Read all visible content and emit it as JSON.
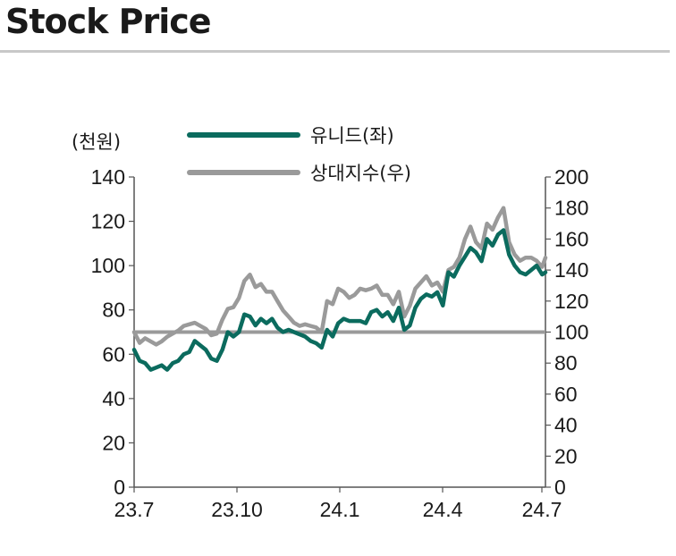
{
  "page": {
    "title": "Stock Price"
  },
  "chart_data": {
    "type": "line",
    "unit_left": "(천원)",
    "x_ticks": [
      "23.7",
      "23.10",
      "24.1",
      "24.4",
      "24.7"
    ],
    "y_left": {
      "min": 0,
      "max": 140,
      "ticks": [
        "0",
        "20",
        "40",
        "60",
        "80",
        "100",
        "120",
        "140"
      ]
    },
    "y_right": {
      "min": 0,
      "max": 200,
      "ticks": [
        "0",
        "20",
        "40",
        "60",
        "80",
        "100",
        "120",
        "140",
        "160",
        "180",
        "200"
      ]
    },
    "reference_line_right": 100,
    "x_range": [
      "2023-07-01",
      "2024-07-08"
    ],
    "series": [
      {
        "name": "유니드(좌)",
        "axis": "left",
        "color": "#0b6b5e",
        "x": [
          "2023-07-01",
          "2023-07-06",
          "2023-07-11",
          "2023-07-16",
          "2023-07-21",
          "2023-07-26",
          "2023-07-31",
          "2023-08-05",
          "2023-08-10",
          "2023-08-15",
          "2023-08-20",
          "2023-08-25",
          "2023-08-30",
          "2023-09-04",
          "2023-09-09",
          "2023-09-14",
          "2023-09-19",
          "2023-09-24",
          "2023-09-29",
          "2023-10-04",
          "2023-10-09",
          "2023-10-14",
          "2023-10-19",
          "2023-10-24",
          "2023-10-29",
          "2023-11-03",
          "2023-11-08",
          "2023-11-13",
          "2023-11-18",
          "2023-11-23",
          "2023-11-28",
          "2023-12-03",
          "2023-12-08",
          "2023-12-13",
          "2023-12-18",
          "2023-12-23",
          "2023-12-28",
          "2024-01-02",
          "2024-01-07",
          "2024-01-12",
          "2024-01-17",
          "2024-01-22",
          "2024-01-27",
          "2024-02-01",
          "2024-02-06",
          "2024-02-11",
          "2024-02-16",
          "2024-02-21",
          "2024-02-26",
          "2024-03-02",
          "2024-03-07",
          "2024-03-12",
          "2024-03-17",
          "2024-03-22",
          "2024-03-27",
          "2024-04-01",
          "2024-04-06",
          "2024-04-11",
          "2024-04-16",
          "2024-04-21",
          "2024-04-26",
          "2024-05-01",
          "2024-05-06",
          "2024-05-11",
          "2024-05-16",
          "2024-05-21",
          "2024-05-26",
          "2024-05-31",
          "2024-06-05",
          "2024-06-10",
          "2024-06-15",
          "2024-06-20",
          "2024-06-25",
          "2024-06-30",
          "2024-07-05",
          "2024-07-08"
        ],
        "values": [
          62,
          57,
          56,
          53,
          54,
          55,
          53,
          56,
          57,
          60,
          61,
          66,
          64,
          62,
          58,
          57,
          62,
          70,
          68,
          70,
          78,
          77,
          73,
          76,
          74,
          76,
          72,
          70,
          71,
          70,
          69,
          68,
          66,
          65,
          63,
          71,
          68,
          74,
          76,
          75,
          75,
          75,
          74,
          79,
          80,
          77,
          79,
          75,
          81,
          71,
          73,
          81,
          85,
          87,
          86,
          88,
          82,
          97,
          95,
          100,
          104,
          108,
          106,
          102,
          112,
          109,
          114,
          116,
          105,
          100,
          97,
          96,
          98,
          100,
          96,
          97
        ]
      },
      {
        "name": "상대지수(우)",
        "axis": "right",
        "color": "#9a9a9a",
        "x": [
          "2023-07-01",
          "2023-07-06",
          "2023-07-11",
          "2023-07-16",
          "2023-07-21",
          "2023-07-26",
          "2023-07-31",
          "2023-08-05",
          "2023-08-10",
          "2023-08-15",
          "2023-08-20",
          "2023-08-25",
          "2023-08-30",
          "2023-09-04",
          "2023-09-09",
          "2023-09-14",
          "2023-09-19",
          "2023-09-24",
          "2023-09-29",
          "2023-10-04",
          "2023-10-09",
          "2023-10-14",
          "2023-10-19",
          "2023-10-24",
          "2023-10-29",
          "2023-11-03",
          "2023-11-08",
          "2023-11-13",
          "2023-11-18",
          "2023-11-23",
          "2023-11-28",
          "2023-12-03",
          "2023-12-08",
          "2023-12-13",
          "2023-12-18",
          "2023-12-23",
          "2023-12-28",
          "2024-01-02",
          "2024-01-07",
          "2024-01-12",
          "2024-01-17",
          "2024-01-22",
          "2024-01-27",
          "2024-02-01",
          "2024-02-06",
          "2024-02-11",
          "2024-02-16",
          "2024-02-21",
          "2024-02-26",
          "2024-03-02",
          "2024-03-07",
          "2024-03-12",
          "2024-03-17",
          "2024-03-22",
          "2024-03-27",
          "2024-04-01",
          "2024-04-06",
          "2024-04-11",
          "2024-04-16",
          "2024-04-21",
          "2024-04-26",
          "2024-05-01",
          "2024-05-06",
          "2024-05-11",
          "2024-05-16",
          "2024-05-21",
          "2024-05-26",
          "2024-05-31",
          "2024-06-05",
          "2024-06-10",
          "2024-06-15",
          "2024-06-20",
          "2024-06-25",
          "2024-06-30",
          "2024-07-05",
          "2024-07-08"
        ],
        "values": [
          100,
          93,
          96,
          94,
          92,
          94,
          97,
          99,
          101,
          104,
          105,
          106,
          104,
          102,
          98,
          99,
          108,
          115,
          116,
          122,
          133,
          137,
          129,
          131,
          126,
          126,
          120,
          114,
          110,
          106,
          104,
          105,
          104,
          103,
          100,
          120,
          118,
          128,
          126,
          122,
          124,
          128,
          127,
          128,
          130,
          124,
          124,
          118,
          126,
          110,
          117,
          128,
          132,
          136,
          130,
          132,
          126,
          140,
          142,
          148,
          160,
          168,
          158,
          154,
          170,
          166,
          174,
          180,
          158,
          150,
          146,
          148,
          148,
          146,
          142,
          148
        ]
      }
    ]
  }
}
